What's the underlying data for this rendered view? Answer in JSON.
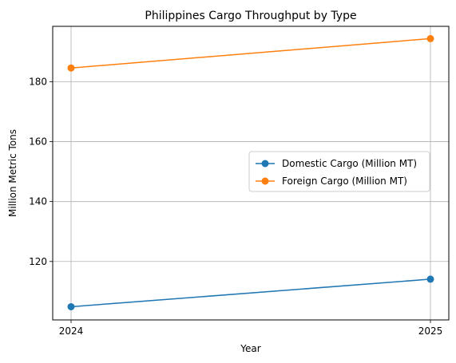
{
  "chart_data": {
    "type": "line",
    "title": "Philippines Cargo Throughput by Type",
    "xlabel": "Year",
    "ylabel": "Million Metric Tons",
    "categories": [
      "2024",
      "2025"
    ],
    "yticks": [
      120,
      140,
      160,
      180
    ],
    "ylim": [
      100.5,
      198.5
    ],
    "grid": true,
    "legend_position": "center-right",
    "series": [
      {
        "name": "Domestic Cargo (Million MT)",
        "values": [
          104.9,
          114.1
        ],
        "color": "#1f77b4"
      },
      {
        "name": "Foreign Cargo (Million MT)",
        "values": [
          184.6,
          194.4
        ],
        "color": "#ff7f0e"
      }
    ]
  }
}
